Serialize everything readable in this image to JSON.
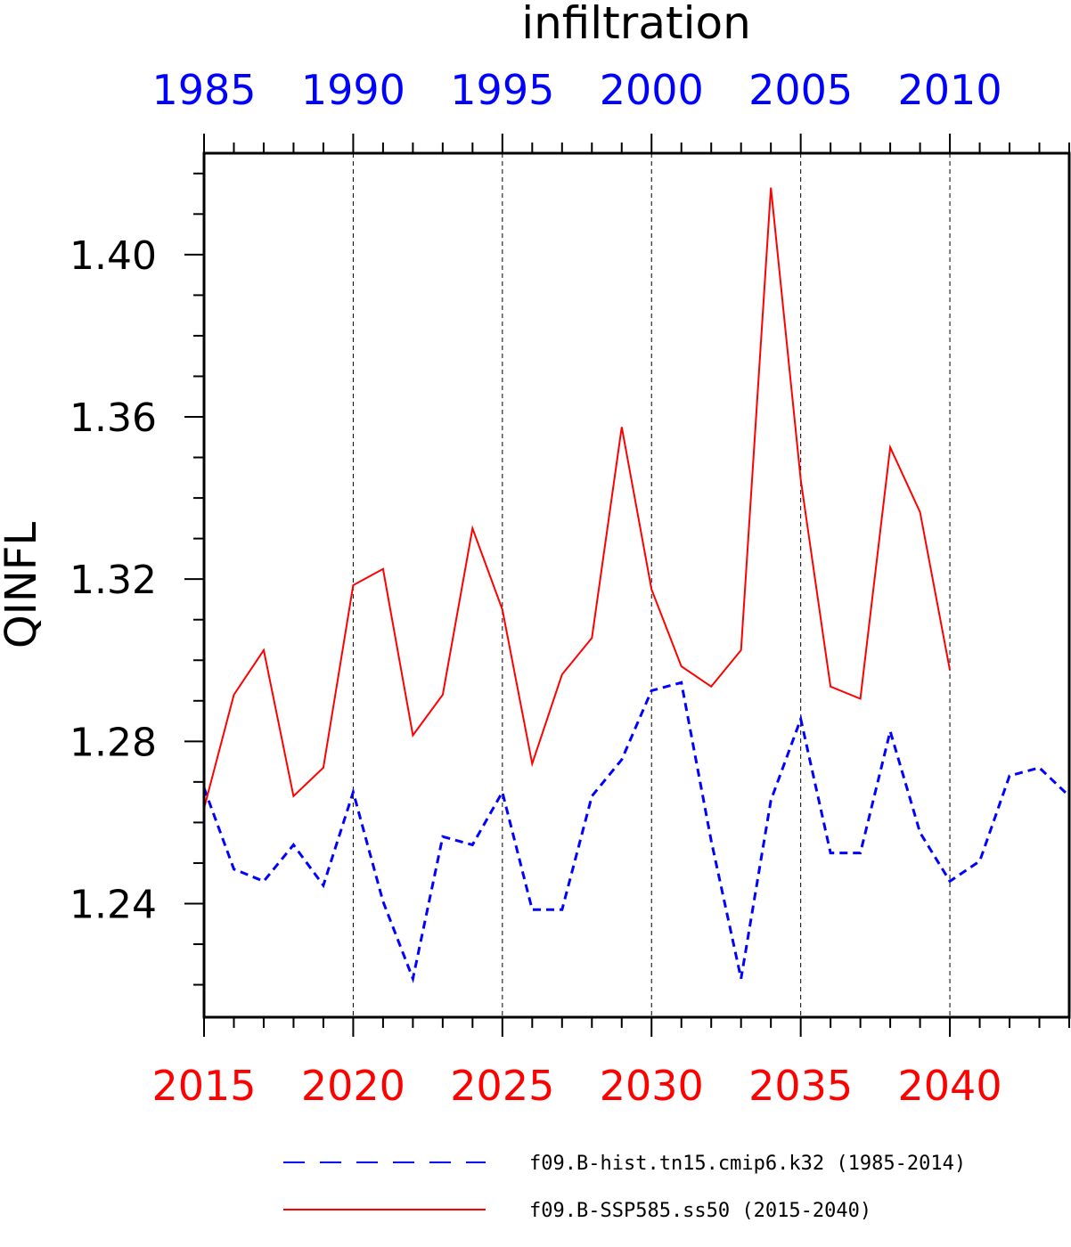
{
  "chart_data": {
    "type": "line",
    "title": "infiltration",
    "ylabel": "QINFL",
    "xlabel": "",
    "ylim": [
      1.212,
      1.425
    ],
    "yticks": [
      1.24,
      1.28,
      1.32,
      1.36,
      1.4
    ],
    "ytick_labels": [
      "1.24",
      "1.28",
      "1.32",
      "1.36",
      "1.40"
    ],
    "grid": "vertical dashed lines at labeled x ticks",
    "legend_position": "bottom",
    "axes": {
      "bottom": {
        "range": [
          2015,
          2044
        ],
        "ticks": [
          2015,
          2020,
          2025,
          2030,
          2035,
          2040
        ],
        "labels": [
          "2015",
          "2020",
          "2025",
          "2030",
          "2035",
          "2040"
        ],
        "color": "#ff0000"
      },
      "top": {
        "range": [
          1985,
          2014
        ],
        "ticks": [
          1985,
          1990,
          1995,
          2000,
          2005,
          2010
        ],
        "labels": [
          "1985",
          "1990",
          "1995",
          "2000",
          "2005",
          "2010"
        ],
        "color": "#0000ff"
      }
    },
    "series": [
      {
        "name": "f09.B-hist.tn15.cmip6.k32 (1985-2014)",
        "axis": "top",
        "color": "#0000ff",
        "style": "dashed",
        "x": [
          1985,
          1986,
          1987,
          1988,
          1989,
          1990,
          1991,
          1992,
          1993,
          1994,
          1995,
          1996,
          1997,
          1998,
          1999,
          2000,
          2001,
          2002,
          2003,
          2004,
          2005,
          2006,
          2007,
          2008,
          2009,
          2010,
          2011,
          2012,
          2013,
          2014
        ],
        "values": [
          1.2685,
          1.2485,
          1.2455,
          1.2545,
          1.2445,
          1.2675,
          1.2405,
          1.2215,
          1.2565,
          1.2545,
          1.2675,
          1.2385,
          1.2385,
          1.2665,
          1.2755,
          1.2925,
          1.2945,
          1.2555,
          1.2215,
          1.2655,
          1.2855,
          1.2525,
          1.2525,
          1.2825,
          1.2575,
          1.2455,
          1.2505,
          1.2715,
          1.2735,
          1.2665
        ]
      },
      {
        "name": "f09.B-SSP585.ss50 (2015-2040)",
        "axis": "bottom",
        "color": "#ff0000",
        "style": "solid",
        "x": [
          2015,
          2016,
          2017,
          2018,
          2019,
          2020,
          2021,
          2022,
          2023,
          2024,
          2025,
          2026,
          2027,
          2028,
          2029,
          2030,
          2031,
          2032,
          2033,
          2034,
          2035,
          2036,
          2037,
          2038,
          2039,
          2040
        ],
        "values": [
          1.2635,
          1.2915,
          1.3025,
          1.2665,
          1.2735,
          1.3185,
          1.3225,
          1.2815,
          1.2915,
          1.3325,
          1.3125,
          1.2745,
          1.2965,
          1.3055,
          1.3575,
          1.3175,
          1.2985,
          1.2935,
          1.3025,
          1.4165,
          1.3445,
          1.2935,
          1.2905,
          1.3525,
          1.3365,
          1.2975
        ]
      }
    ]
  }
}
